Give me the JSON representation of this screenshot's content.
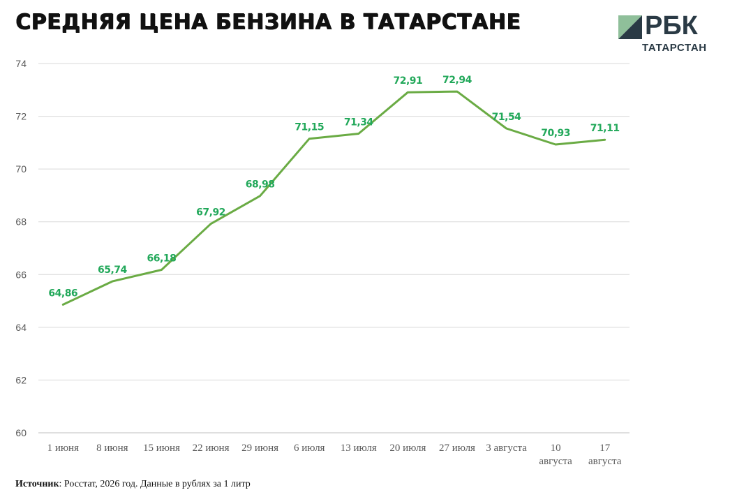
{
  "header": {
    "title": "СРЕДНЯЯ ЦЕНА БЕНЗИНА В ТАТАРСТАНЕ"
  },
  "logo": {
    "word": "РБК",
    "sub": "ТАТАРСТАН",
    "colors": {
      "light": "#8fbf9a",
      "dark": "#2a3a45"
    }
  },
  "source": {
    "label": "Источник",
    "text": ": Росстат, 2026 год. Данные в рублях за 1 литр"
  },
  "chart_data": {
    "type": "line",
    "categories": [
      "1 июня",
      "8 июня",
      "15 июня",
      "22 июня",
      "29 июня",
      "6 июля",
      "13 июля",
      "20 июля",
      "27 июля",
      "3 августа",
      "10 августа",
      "17 августа"
    ],
    "series": [
      {
        "values": [
          64.86,
          65.74,
          66.18,
          67.92,
          68.98,
          71.15,
          71.34,
          72.91,
          72.94,
          71.54,
          70.93,
          71.11
        ],
        "labels": [
          "64,86",
          "65,74",
          "66,18",
          "67,92",
          "68,98",
          "71,15",
          "71,34",
          "72,91",
          "72,94",
          "71,54",
          "70,93",
          "71,11"
        ],
        "color": "#6aab44",
        "label_color": "#22a85a"
      }
    ],
    "ylim": [
      60,
      74
    ],
    "yticks": [
      60,
      62,
      64,
      66,
      68,
      70,
      72,
      74
    ],
    "grid": true,
    "legend": "none",
    "xlabel": "",
    "ylabel": ""
  }
}
